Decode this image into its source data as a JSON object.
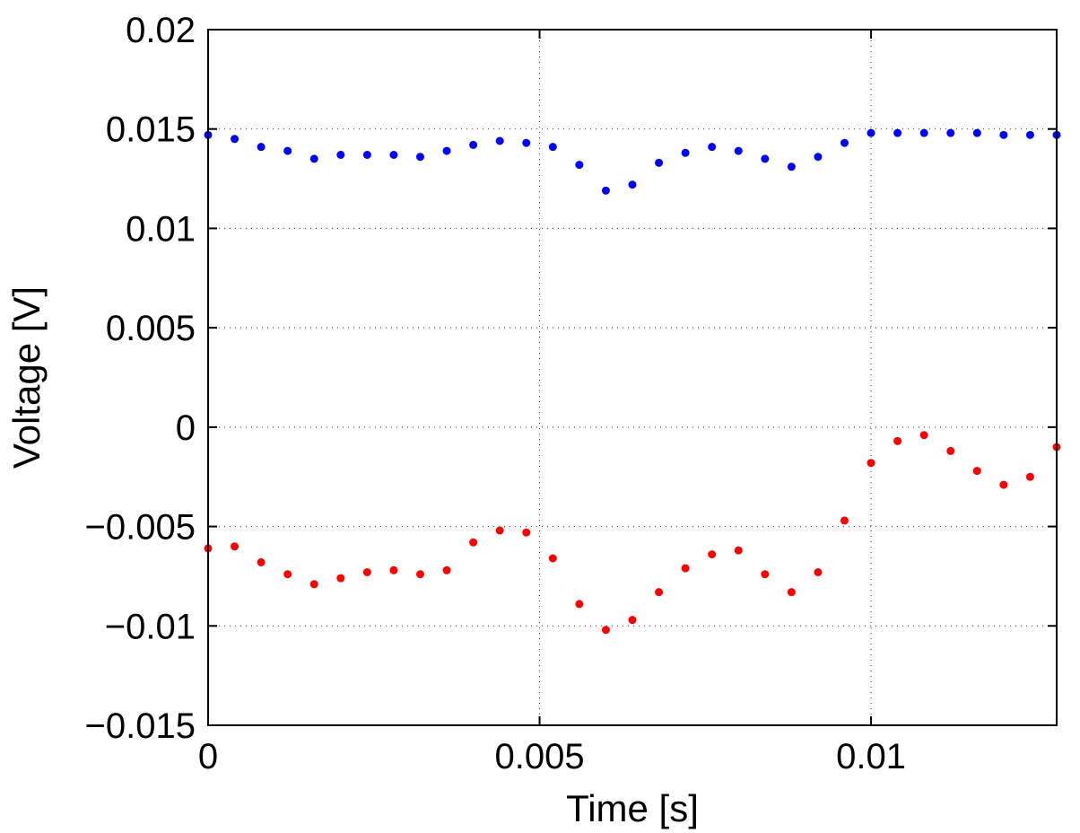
{
  "chart_data": {
    "type": "scatter",
    "title": "",
    "xlabel": "Time [s]",
    "ylabel": "Voltage [V]",
    "xlim": [
      0,
      0.0128
    ],
    "ylim": [
      -0.015,
      0.02
    ],
    "grid": true,
    "grid_style": "dotted",
    "x_ticks": [
      0,
      0.005,
      0.01
    ],
    "x_tick_labels": [
      "0",
      "0.005",
      "0.01"
    ],
    "y_ticks": [
      -0.015,
      -0.01,
      -0.005,
      0,
      0.005,
      0.01,
      0.015,
      0.02
    ],
    "y_tick_labels": [
      "−0.015",
      "−0.01",
      "−0.005",
      "0",
      "0.005",
      "0.01",
      "0.015",
      "0.02"
    ],
    "series": [
      {
        "color": "#0000ff",
        "marker": "dot",
        "x": [
          0,
          0.0004,
          0.0008,
          0.0012,
          0.0016,
          0.002,
          0.0024,
          0.0028,
          0.0032,
          0.0036,
          0.004,
          0.0044,
          0.0048,
          0.0052,
          0.0056,
          0.006,
          0.0064,
          0.0068,
          0.0072,
          0.0076,
          0.008,
          0.0084,
          0.0088,
          0.0092,
          0.0096,
          0.01,
          0.0104,
          0.0108,
          0.0112,
          0.0116,
          0.012,
          0.0124,
          0.0128
        ],
        "values": [
          0.0147,
          0.0145,
          0.0141,
          0.0139,
          0.0135,
          0.0137,
          0.0137,
          0.0137,
          0.0136,
          0.0139,
          0.0142,
          0.0144,
          0.0143,
          0.0141,
          0.0132,
          0.0119,
          0.0122,
          0.0133,
          0.0138,
          0.0141,
          0.0139,
          0.0135,
          0.0131,
          0.0136,
          0.0143,
          0.0148,
          0.0148,
          0.0148,
          0.0148,
          0.0148,
          0.0147,
          0.0147,
          0.0147
        ]
      },
      {
        "color": "#ff0000",
        "marker": "dot",
        "x": [
          0,
          0.0004,
          0.0008,
          0.0012,
          0.0016,
          0.002,
          0.0024,
          0.0028,
          0.0032,
          0.0036,
          0.004,
          0.0044,
          0.0048,
          0.0052,
          0.0056,
          0.006,
          0.0064,
          0.0068,
          0.0072,
          0.0076,
          0.008,
          0.0084,
          0.0088,
          0.0092,
          0.0096,
          0.01,
          0.0104,
          0.0108,
          0.0112,
          0.0116,
          0.012,
          0.0124,
          0.0128
        ],
        "values": [
          -0.0061,
          -0.006,
          -0.0068,
          -0.0074,
          -0.0079,
          -0.0076,
          -0.0073,
          -0.0072,
          -0.0074,
          -0.0072,
          -0.0058,
          -0.0052,
          -0.0053,
          -0.0066,
          -0.0089,
          -0.0102,
          -0.0097,
          -0.0083,
          -0.0071,
          -0.0064,
          -0.0062,
          -0.0074,
          -0.0083,
          -0.0073,
          -0.0047,
          -0.0018,
          -0.0007,
          -0.0004,
          -0.0012,
          -0.0022,
          -0.0029,
          -0.0025,
          -0.001
        ]
      }
    ]
  }
}
